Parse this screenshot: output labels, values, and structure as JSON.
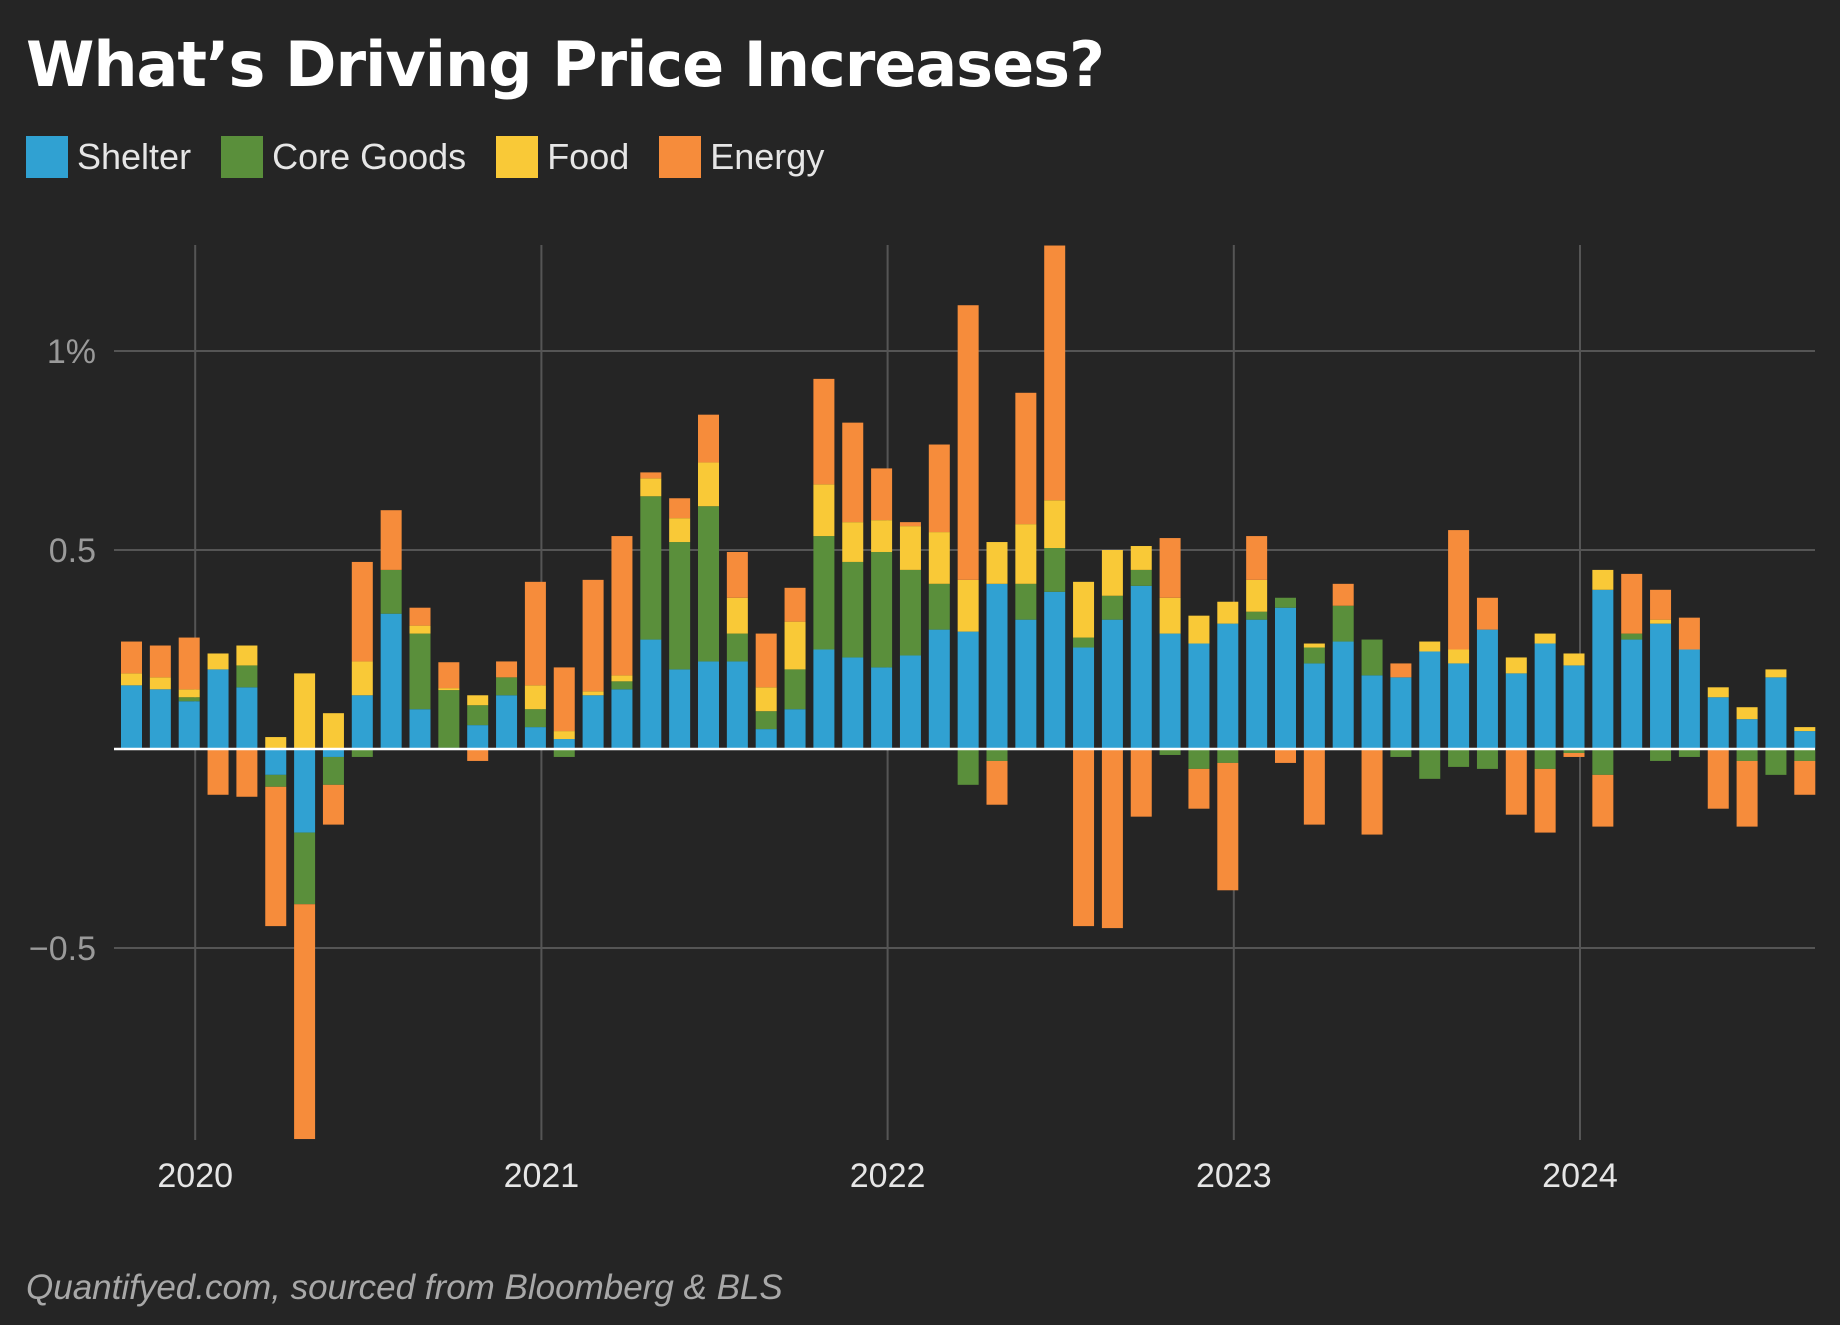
{
  "title": "What’s Driving Price Increases?",
  "source": "Quantifyed.com, sourced from Bloomberg & BLS",
  "colors": {
    "background": "#252525",
    "grid": "#555555",
    "zero_line": "#ffffff",
    "Shelter": "#30a1d2",
    "Core Goods": "#5a8f3b",
    "Food": "#f9c937",
    "Energy": "#f68c3b"
  },
  "chart_data": {
    "type": "bar",
    "stacked": true,
    "title": "What’s Driving Price Increases?",
    "xlabel": "",
    "ylabel": "",
    "ylim": [
      -0.98,
      1.26
    ],
    "yticks": [
      1,
      0.5,
      -0.5
    ],
    "ytick_labels": [
      "1%",
      "0.5",
      "−0.5"
    ],
    "xticks": [
      "2020-01",
      "2021-01",
      "2022-01",
      "2023-01",
      "2024-01"
    ],
    "xtick_labels": [
      "2020",
      "2021",
      "2022",
      "2023",
      "2024"
    ],
    "grid": true,
    "legend": "top-left",
    "categories": [
      "2019-11",
      "2019-12",
      "2020-01",
      "2020-02",
      "2020-03",
      "2020-04",
      "2020-05",
      "2020-06",
      "2020-07",
      "2020-08",
      "2020-09",
      "2020-10",
      "2020-11",
      "2020-12",
      "2021-01",
      "2021-02",
      "2021-03",
      "2021-04",
      "2021-05",
      "2021-06",
      "2021-07",
      "2021-08",
      "2021-09",
      "2021-10",
      "2021-11",
      "2021-12",
      "2022-01",
      "2022-02",
      "2022-03",
      "2022-04",
      "2022-05",
      "2022-06",
      "2022-07",
      "2022-08",
      "2022-09",
      "2022-10",
      "2022-11",
      "2022-12",
      "2023-01",
      "2023-02",
      "2023-03",
      "2023-04",
      "2023-05",
      "2023-06",
      "2023-07",
      "2023-08",
      "2023-09",
      "2023-10",
      "2023-11",
      "2023-12",
      "2024-01",
      "2024-02",
      "2024-03",
      "2024-04",
      "2024-05",
      "2024-06",
      "2024-07",
      "2024-08",
      "2024-09"
    ],
    "series": [
      {
        "name": "Shelter",
        "values": [
          0.16,
          0.15,
          0.12,
          0.2,
          0.155,
          -0.065,
          -0.21,
          -0.02,
          0.135,
          0.34,
          0.1,
          0.003,
          0.06,
          0.135,
          0.055,
          0.025,
          0.135,
          0.15,
          0.275,
          0.2,
          0.22,
          0.22,
          0.05,
          0.1,
          0.25,
          0.23,
          0.205,
          0.235,
          0.3,
          0.295,
          0.415,
          0.325,
          0.395,
          0.255,
          0.325,
          0.41,
          0.29,
          0.265,
          0.315,
          0.325,
          0.355,
          0.215,
          0.27,
          0.185,
          0.18,
          0.245,
          0.215,
          0.3,
          0.19,
          0.265,
          0.21,
          0.4,
          0.275,
          0.315,
          0.25,
          0.13,
          0.075,
          0.18,
          0.045
        ]
      },
      {
        "name": "Core Goods",
        "values": [
          0.0,
          0.0,
          0.01,
          0.0,
          0.055,
          -0.03,
          -0.18,
          -0.07,
          -0.02,
          0.11,
          0.19,
          0.145,
          0.05,
          0.045,
          0.045,
          -0.02,
          0.0,
          0.02,
          0.36,
          0.32,
          0.39,
          0.07,
          0.045,
          0.1,
          0.285,
          0.24,
          0.29,
          0.215,
          0.115,
          -0.09,
          -0.03,
          0.09,
          0.11,
          0.025,
          0.06,
          0.04,
          -0.015,
          -0.05,
          -0.035,
          0.02,
          0.025,
          0.04,
          0.09,
          0.09,
          -0.02,
          -0.075,
          -0.045,
          -0.05,
          0.0,
          -0.05,
          -0.01,
          -0.065,
          0.015,
          -0.03,
          -0.02,
          0.0,
          -0.03,
          -0.065,
          -0.03
        ]
      },
      {
        "name": "Food",
        "values": [
          0.03,
          0.03,
          0.02,
          0.04,
          0.05,
          0.03,
          0.19,
          0.09,
          0.085,
          0.0,
          0.02,
          0.005,
          0.025,
          0.0,
          0.06,
          0.02,
          0.01,
          0.015,
          0.045,
          0.06,
          0.11,
          0.09,
          0.06,
          0.12,
          0.13,
          0.1,
          0.08,
          0.11,
          0.13,
          0.13,
          0.105,
          0.15,
          0.12,
          0.14,
          0.115,
          0.06,
          0.09,
          0.07,
          0.055,
          0.08,
          0.0,
          0.01,
          0.0,
          0.0,
          0.0,
          0.025,
          0.035,
          0.0,
          0.04,
          0.025,
          0.03,
          0.05,
          0.0,
          0.01,
          0.0,
          0.025,
          0.03,
          0.02,
          0.01
        ]
      },
      {
        "name": "Energy",
        "values": [
          0.08,
          0.08,
          0.13,
          -0.115,
          -0.12,
          -0.35,
          -0.59,
          -0.1,
          0.25,
          0.15,
          0.045,
          0.065,
          -0.03,
          0.04,
          0.26,
          0.16,
          0.28,
          0.35,
          0.015,
          0.05,
          0.12,
          0.115,
          0.135,
          0.085,
          0.265,
          0.25,
          0.13,
          0.01,
          0.22,
          0.69,
          -0.11,
          0.33,
          0.64,
          -0.445,
          -0.45,
          -0.17,
          0.15,
          -0.1,
          -0.32,
          0.11,
          -0.035,
          -0.19,
          0.055,
          -0.215,
          0.035,
          0.0,
          0.3,
          0.08,
          -0.165,
          -0.16,
          -0.01,
          -0.13,
          0.15,
          0.075,
          0.08,
          -0.15,
          -0.165,
          0.0,
          -0.085
        ]
      }
    ]
  }
}
